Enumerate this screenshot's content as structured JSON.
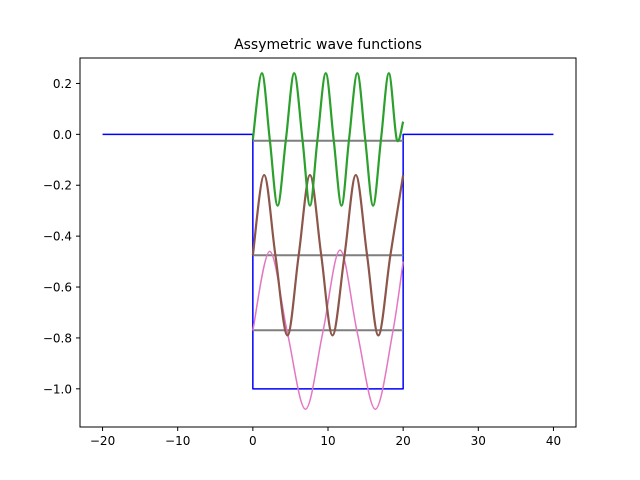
{
  "chart_data": {
    "type": "line",
    "title": "Assymetric wave functions",
    "xlabel": "",
    "ylabel": "",
    "xlim": [
      -23,
      43
    ],
    "ylim": [
      -1.15,
      0.3
    ],
    "xticks": [
      -20,
      -10,
      0,
      10,
      20,
      30,
      40
    ],
    "xtick_labels": [
      "−20",
      "−10",
      "0",
      "10",
      "20",
      "30",
      "40"
    ],
    "yticks": [
      0.2,
      0.0,
      -0.2,
      -0.4,
      -0.6,
      -0.8,
      -1.0
    ],
    "ytick_labels": [
      "0.2",
      "0.0",
      "−0.2",
      "−0.4",
      "−0.6",
      "−0.8",
      "−1.0"
    ],
    "grid": false,
    "legend": "none",
    "series": [
      {
        "kind": "potential",
        "color": "#0000ff",
        "x": [
          -20,
          0,
          0,
          20,
          20,
          40
        ],
        "y": [
          0,
          0,
          -1,
          -1,
          0,
          0
        ]
      },
      {
        "kind": "energy-level",
        "color": "#7f7f7f",
        "x": [
          0,
          20
        ],
        "y": [
          -0.77,
          -0.77
        ]
      },
      {
        "kind": "energy-level",
        "color": "#7f7f7f",
        "x": [
          0,
          20
        ],
        "y": [
          -0.475,
          -0.475
        ]
      },
      {
        "kind": "energy-level",
        "color": "#7f7f7f",
        "x": [
          0,
          20
        ],
        "y": [
          -0.025,
          -0.025
        ]
      },
      {
        "kind": "wave-function",
        "color": "#e377c2",
        "x": [
          0,
          2.25,
          4.6,
          7.0,
          9.3,
          11.6,
          13.9,
          16.3,
          18.6,
          20
        ],
        "y": [
          -0.77,
          -0.46,
          -0.78,
          -1.08,
          -0.78,
          -0.455,
          -0.78,
          -1.08,
          -0.78,
          -0.5
        ]
      },
      {
        "kind": "wave-function",
        "color": "#8c564b",
        "x": [
          0,
          1.5,
          3.0,
          4.6,
          6.1,
          7.6,
          9.1,
          10.6,
          12.2,
          13.7,
          15.2,
          16.7,
          18.3,
          20
        ],
        "y": [
          -0.475,
          -0.16,
          -0.475,
          -0.79,
          -0.475,
          -0.16,
          -0.475,
          -0.79,
          -0.475,
          -0.16,
          -0.475,
          -0.79,
          -0.475,
          -0.16
        ]
      },
      {
        "kind": "wave-function",
        "color": "#2ca02c",
        "x": [
          0,
          1.2,
          2.25,
          3.3,
          4.4,
          5.5,
          6.6,
          7.6,
          8.6,
          9.7,
          10.75,
          11.8,
          12.8,
          13.9,
          14.95,
          16.0,
          17.05,
          18.1,
          19.15,
          20
        ],
        "y": [
          -0.02,
          0.24,
          -0.02,
          -0.28,
          -0.02,
          0.24,
          -0.02,
          -0.28,
          -0.02,
          0.24,
          -0.02,
          -0.28,
          -0.02,
          0.24,
          -0.02,
          -0.28,
          -0.02,
          0.24,
          -0.02,
          0.05
        ]
      }
    ]
  }
}
